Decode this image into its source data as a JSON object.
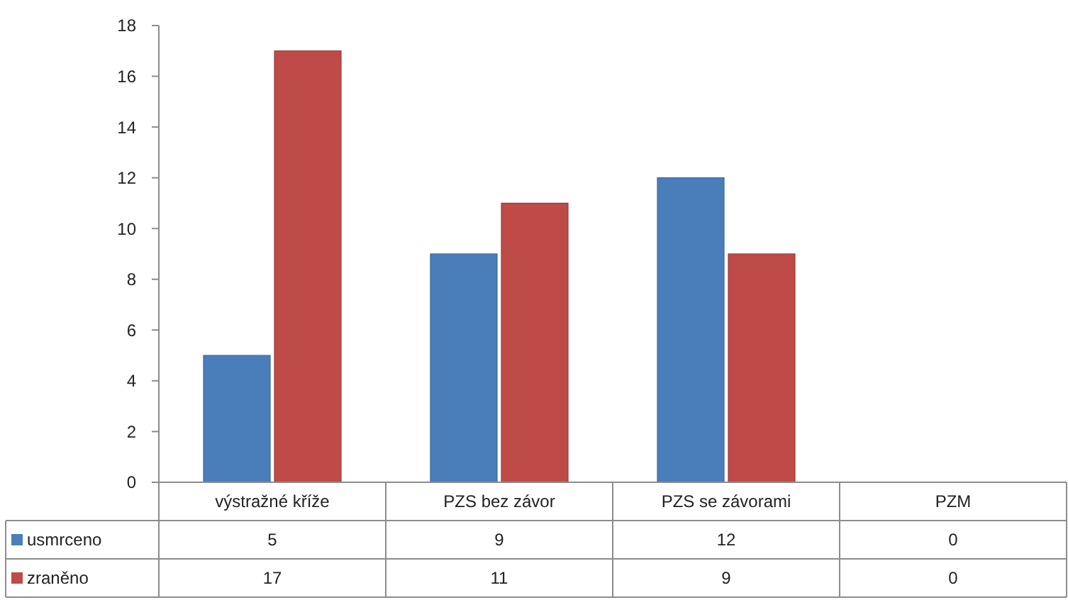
{
  "chart_data": {
    "type": "bar",
    "categories": [
      "výstražné kříže",
      "PZS bez závor",
      "PZS se závorami",
      "PZM"
    ],
    "series": [
      {
        "name": "usmrceno",
        "color": "#4a7ebb",
        "values": [
          5,
          9,
          12,
          0
        ]
      },
      {
        "name": "zraněno",
        "color": "#be4b48",
        "values": [
          17,
          11,
          9,
          0
        ]
      }
    ],
    "ylim": [
      0,
      18
    ],
    "yticks": [
      0,
      2,
      4,
      6,
      8,
      10,
      12,
      14,
      16,
      18
    ],
    "grid": false,
    "legend": "bottom left",
    "data_labels": true
  }
}
